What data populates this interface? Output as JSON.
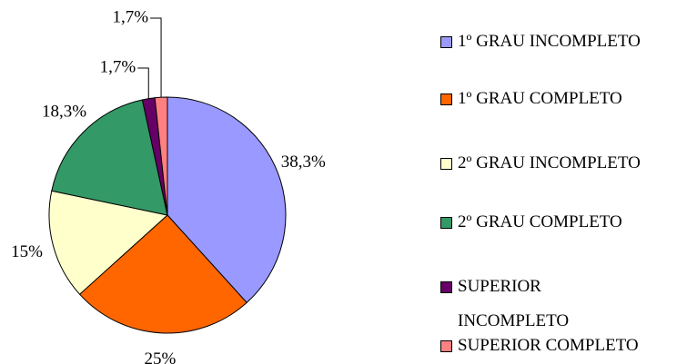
{
  "chart_data": {
    "type": "pie",
    "categories": [
      "1º GRAU INCOMPLETO",
      "1º GRAU COMPLETO",
      "2º GRAU INCOMPLETO",
      "2º GRAU COMPLETO",
      "SUPERIOR INCOMPLETO",
      "SUPERIOR COMPLETO"
    ],
    "values": [
      38.3,
      25,
      15,
      18.3,
      1.7,
      1.7
    ],
    "value_labels": [
      "38,3%",
      "25%",
      "15%",
      "18,3%",
      "1,7%",
      "1,7%"
    ],
    "colors": [
      "#9999ff",
      "#ff6600",
      "#ffffcc",
      "#339966",
      "#660066",
      "#ff8080"
    ]
  }
}
